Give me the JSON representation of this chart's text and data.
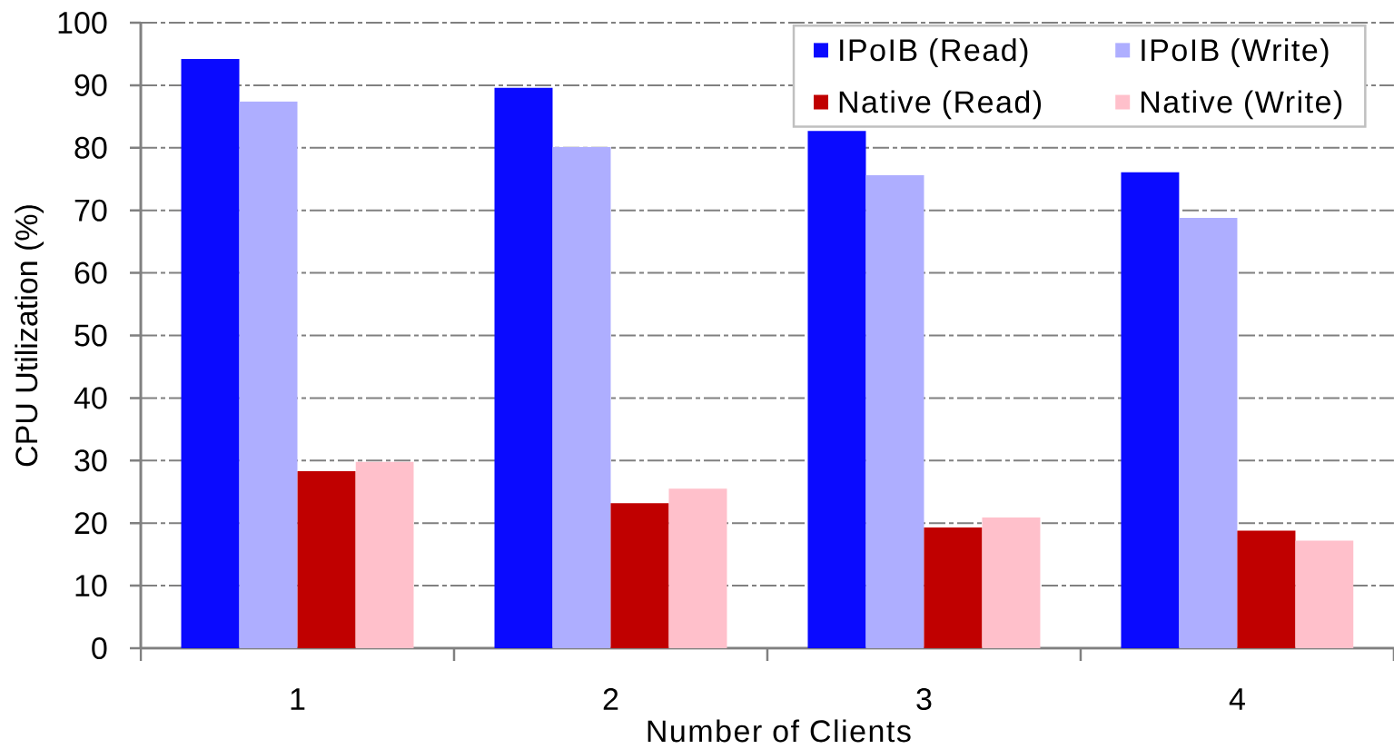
{
  "chart_data": {
    "type": "bar",
    "xlabel": "Number of Clients",
    "ylabel": "CPU Utilization (%)",
    "categories": [
      "1",
      "2",
      "3",
      "4"
    ],
    "series": [
      {
        "name": "IPoIB (Read)",
        "color": "#0a0aff",
        "values": [
          94.2,
          89.6,
          82.7,
          76.1
        ]
      },
      {
        "name": "IPoIB (Write)",
        "color": "#aeaeff",
        "values": [
          87.4,
          80.1,
          75.6,
          68.8
        ]
      },
      {
        "name": "Native (Read)",
        "color": "#c00000",
        "values": [
          28.3,
          23.2,
          19.3,
          18.8
        ]
      },
      {
        "name": "Native (Write)",
        "color": "#ffc0cb",
        "values": [
          29.8,
          25.5,
          20.9,
          17.2
        ]
      }
    ],
    "ylim": [
      0,
      100
    ],
    "yticks": [
      0,
      10,
      20,
      30,
      40,
      50,
      60,
      70,
      80,
      90,
      100
    ],
    "grid": "y",
    "legend": "top right"
  }
}
